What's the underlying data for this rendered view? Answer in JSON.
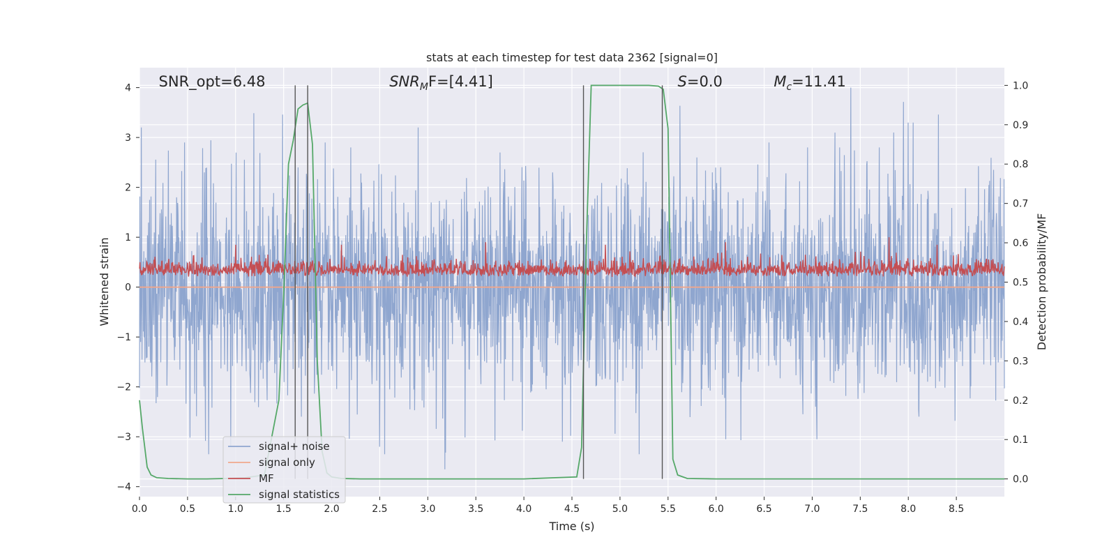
{
  "chart_data": {
    "type": "line",
    "title": "stats at each timestep for test data 2362 [signal=0]",
    "xlabel": "Time (s)",
    "ylabel": "Whitened strain",
    "ylabel_right": "Detection probability/MF",
    "xlim": [
      0.0,
      9.0
    ],
    "ylim": [
      -4.2,
      4.4
    ],
    "ylim_right": [
      -0.045,
      1.045
    ],
    "x_ticks": [
      "0.0",
      "0.5",
      "1.0",
      "1.5",
      "2.0",
      "2.5",
      "3.0",
      "3.5",
      "4.0",
      "4.5",
      "5.0",
      "5.5",
      "6.0",
      "6.5",
      "7.0",
      "7.5",
      "8.0",
      "8.5"
    ],
    "y_ticks": [
      "4",
      "3",
      "2",
      "1",
      "0",
      "−1",
      "−2",
      "−3",
      "−4"
    ],
    "y_ticks_right": [
      "1.0",
      "0.9",
      "0.8",
      "0.7",
      "0.6",
      "0.5",
      "0.4",
      "0.3",
      "0.2",
      "0.1",
      "0.0"
    ],
    "grid": true,
    "legend_position": "lower-left",
    "annotations": [
      {
        "prefix": "SNR_opt",
        "sub": "",
        "suffix": "=6.48",
        "italic": false,
        "x": 0.2
      },
      {
        "prefix": "SNR",
        "sub": "M",
        "suffix": "F=[4.41]",
        "italic": true,
        "x": 2.6
      },
      {
        "prefix": "S",
        "sub": "",
        "suffix": "=0.0",
        "italic": true,
        "x": 5.6
      },
      {
        "prefix": "M",
        "sub": "c",
        "suffix": "=11.41",
        "italic": true,
        "x": 6.6
      }
    ],
    "vertical_lines_x": [
      1.62,
      1.75,
      4.62,
      5.44
    ],
    "series": [
      {
        "name": "signal+ noise",
        "color": "#8fa6cf",
        "axis": "left",
        "noise_std": 1.0,
        "peaks": [
          [
            0.02,
            3.2
          ],
          [
            0.47,
            2.9
          ],
          [
            1.65,
            2.4
          ],
          [
            2.2,
            2.8
          ],
          [
            2.9,
            3.2
          ],
          [
            3.75,
            2.7
          ],
          [
            4.3,
            2.3
          ],
          [
            5.8,
            2.6
          ],
          [
            6.55,
            2.9
          ],
          [
            6.95,
            2.8
          ],
          [
            7.4,
            4.0
          ],
          [
            7.7,
            2.8
          ],
          [
            7.85,
            3.1
          ],
          [
            8.0,
            3.3
          ],
          [
            8.05,
            3.3
          ],
          [
            0.72,
            -3.35
          ],
          [
            0.95,
            -3.2
          ],
          [
            2.5,
            -3.2
          ],
          [
            2.55,
            -3.35
          ],
          [
            4.4,
            -3.1
          ],
          [
            5.2,
            -3.35
          ],
          [
            6.1,
            -3.05
          ],
          [
            7.05,
            -3.05
          ]
        ],
        "samples": 2400
      },
      {
        "name": "signal only",
        "color": "#f0a78c",
        "axis": "left",
        "x": [
          0.0,
          9.0
        ],
        "y": [
          0.0,
          0.0
        ]
      },
      {
        "name": "MF",
        "color": "#c44e52",
        "axis": "left",
        "baseline": 0.25,
        "spread": 0.15,
        "peaks": [
          [
            1.0,
            0.85
          ],
          [
            2.1,
            0.85
          ],
          [
            3.6,
            0.9
          ],
          [
            4.85,
            0.85
          ],
          [
            6.1,
            0.9
          ],
          [
            7.8,
            1.0
          ],
          [
            8.3,
            0.85
          ]
        ],
        "samples": 1800
      },
      {
        "name": "signal statistics",
        "color": "#55a868",
        "axis": "right",
        "x": [
          0.0,
          0.03,
          0.08,
          0.12,
          0.18,
          0.3,
          0.5,
          0.7,
          0.9,
          1.1,
          1.3,
          1.45,
          1.5,
          1.55,
          1.6,
          1.65,
          1.7,
          1.75,
          1.8,
          1.85,
          1.9,
          1.95,
          2.0,
          2.1,
          2.3,
          3.0,
          4.0,
          4.55,
          4.6,
          4.65,
          4.7,
          5.0,
          5.3,
          5.4,
          5.45,
          5.5,
          5.55,
          5.6,
          5.7,
          6.0,
          7.0,
          8.0,
          9.0
        ],
        "y": [
          0.2,
          0.13,
          0.03,
          0.01,
          0.003,
          0.001,
          0.0,
          0.0,
          0.001,
          0.003,
          0.01,
          0.2,
          0.47,
          0.8,
          0.86,
          0.94,
          0.95,
          0.955,
          0.85,
          0.3,
          0.07,
          0.015,
          0.005,
          0.001,
          0.0,
          0.0,
          0.0,
          0.005,
          0.08,
          0.6,
          1.0,
          1.0,
          1.0,
          0.998,
          0.99,
          0.89,
          0.05,
          0.01,
          0.001,
          0.0,
          0.0,
          0.0,
          0.0
        ]
      }
    ]
  }
}
